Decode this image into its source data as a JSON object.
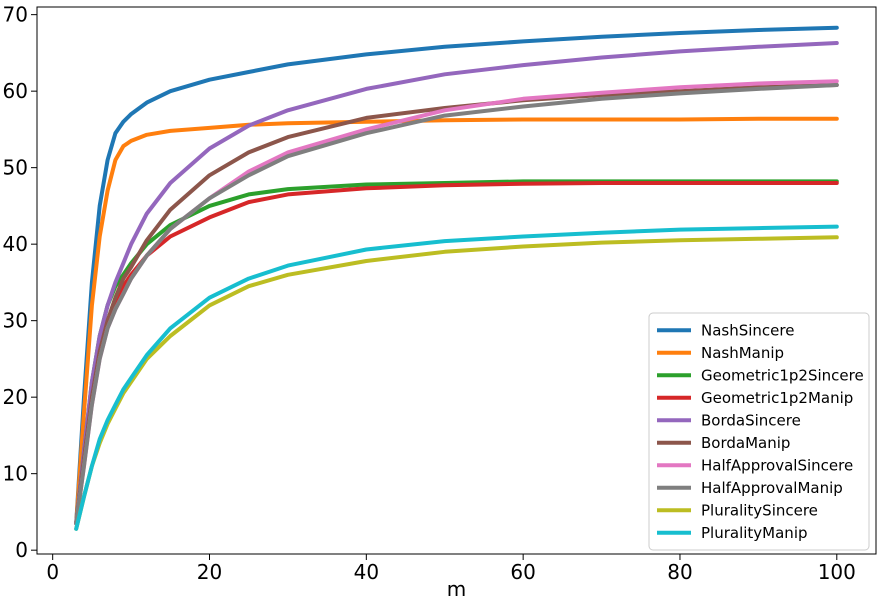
{
  "chart_data": {
    "type": "line",
    "title": "",
    "xlabel": "m",
    "ylabel": "",
    "xlim": [
      -2,
      105
    ],
    "ylim": [
      -0.5,
      71
    ],
    "xticks": [
      0,
      20,
      40,
      60,
      80,
      100
    ],
    "yticks": [
      0,
      10,
      20,
      30,
      40,
      50,
      60,
      70
    ],
    "grid": false,
    "legend_position": "lower-right",
    "x": [
      3,
      4,
      5,
      6,
      7,
      8,
      9,
      10,
      12,
      15,
      20,
      25,
      30,
      40,
      50,
      60,
      70,
      80,
      90,
      100
    ],
    "series": [
      {
        "name": "NashSincere",
        "color": "#1f77b4",
        "values": [
          3.5,
          20,
          35,
          45,
          51,
          54.5,
          56,
          57,
          58.5,
          60,
          61.5,
          62.5,
          63.5,
          64.8,
          65.8,
          66.5,
          67.1,
          67.6,
          68,
          68.3
        ]
      },
      {
        "name": "NashManip",
        "color": "#ff7f0e",
        "values": [
          3.5,
          18,
          32,
          41,
          47,
          51,
          52.8,
          53.5,
          54.3,
          54.8,
          55.2,
          55.6,
          55.8,
          56,
          56.2,
          56.3,
          56.3,
          56.3,
          56.4,
          56.4
        ]
      },
      {
        "name": "Geometric1p2Sincere",
        "color": "#2ca02c",
        "values": [
          3.5,
          13,
          22,
          28,
          32,
          34.5,
          36,
          37.5,
          40,
          42.5,
          45,
          46.5,
          47.2,
          47.8,
          48,
          48.2,
          48.2,
          48.2,
          48.2,
          48.2
        ]
      },
      {
        "name": "Geometric1p2Manip",
        "color": "#d62728",
        "values": [
          3.5,
          12,
          21,
          27,
          30,
          32.5,
          34.5,
          36,
          38.5,
          41,
          43.5,
          45.5,
          46.5,
          47.3,
          47.7,
          47.9,
          48,
          48,
          48,
          48
        ]
      },
      {
        "name": "BordaSincere",
        "color": "#9467bd",
        "values": [
          3.5,
          13,
          22,
          28,
          32,
          35,
          37.5,
          40,
          44,
          48,
          52.5,
          55.5,
          57.5,
          60.3,
          62.2,
          63.4,
          64.4,
          65.2,
          65.8,
          66.3
        ]
      },
      {
        "name": "BordaManip",
        "color": "#8c564b",
        "values": [
          3.5,
          12,
          20,
          26,
          30,
          33,
          35.5,
          37,
          40.5,
          44.5,
          49,
          52,
          54,
          56.5,
          57.8,
          58.8,
          59.5,
          60,
          60.5,
          60.8
        ]
      },
      {
        "name": "HalfApprovalSincere",
        "color": "#e377c2",
        "values": [
          3.5,
          11,
          19,
          25,
          29,
          31.5,
          33.5,
          35.5,
          38.5,
          42,
          46,
          49.5,
          52,
          55,
          57.5,
          59,
          59.8,
          60.5,
          61,
          61.3
        ]
      },
      {
        "name": "HalfApprovalManip",
        "color": "#7f7f7f",
        "values": [
          3.5,
          11,
          19,
          25,
          29,
          31.5,
          33.5,
          35.5,
          38.5,
          42,
          46,
          49,
          51.5,
          54.5,
          56.8,
          58,
          59,
          59.7,
          60.3,
          60.8
        ]
      },
      {
        "name": "PluralitySincere",
        "color": "#bcbd22",
        "values": [
          2.8,
          7,
          11,
          14,
          16.5,
          18.5,
          20.5,
          22,
          25,
          28,
          32,
          34.5,
          36,
          37.8,
          39,
          39.7,
          40.2,
          40.5,
          40.7,
          40.9
        ]
      },
      {
        "name": "PluralityManip",
        "color": "#17becf",
        "values": [
          2.8,
          7,
          11,
          14.5,
          17,
          19,
          21,
          22.5,
          25.5,
          29,
          33,
          35.5,
          37.2,
          39.3,
          40.4,
          41,
          41.5,
          41.9,
          42.1,
          42.3
        ]
      }
    ]
  }
}
